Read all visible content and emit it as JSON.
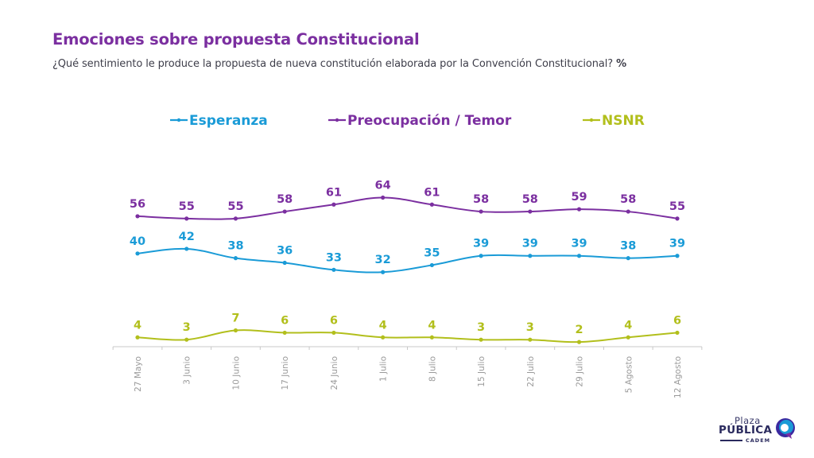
{
  "header": {
    "title": "Emociones sobre propuesta Constitucional",
    "subtitle": "¿Qué sentimiento le produce la propuesta de nueva constitución elaborada por la Convención Constitucional?",
    "subtitle_unit": "%"
  },
  "logo": {
    "line1": "Plaza",
    "line2": "PÚBLICA",
    "line3": "CADEM"
  },
  "chart_data": {
    "type": "line",
    "title": "Emociones sobre propuesta Constitucional",
    "xlabel": "",
    "ylabel": "%",
    "ylim": [
      0,
      70
    ],
    "grid": false,
    "legend_position": "top",
    "categories": [
      "27 Mayo",
      "3 Junio",
      "10 Junio",
      "17 Junio",
      "24 Junio",
      "1 Julio",
      "8 Julio",
      "15 Julio",
      "22 Julio",
      "29 Julio",
      "5 Agosto",
      "12 Agosto"
    ],
    "series": [
      {
        "name": "Esperanza",
        "color": "#1a9bd7",
        "values": [
          40,
          42,
          38,
          36,
          33,
          32,
          35,
          39,
          39,
          39,
          38,
          39
        ]
      },
      {
        "name": "Preocupación / Temor",
        "color": "#7b2fa0",
        "values": [
          56,
          55,
          55,
          58,
          61,
          64,
          61,
          58,
          58,
          59,
          58,
          55
        ]
      },
      {
        "name": "NSNR",
        "color": "#b2bf1c",
        "values": [
          4,
          3,
          7,
          6,
          6,
          4,
          4,
          3,
          3,
          2,
          4,
          6
        ]
      }
    ],
    "axis_color": "#c8c8c8",
    "tick_label_color": "#9a9a9a"
  }
}
